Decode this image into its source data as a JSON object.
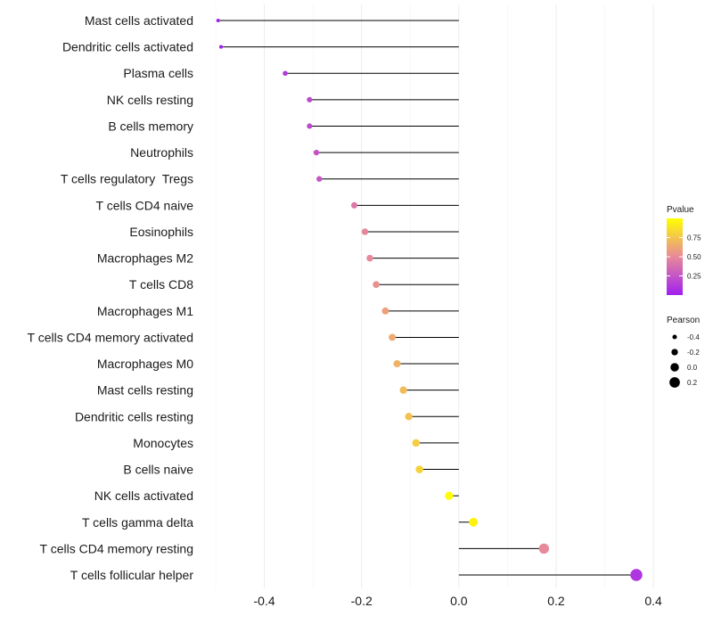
{
  "chart_data": {
    "type": "lollipop",
    "categories": [
      "Mast cells activated",
      "Dendritic cells activated",
      "Plasma cells",
      "NK cells resting",
      "B cells memory",
      "Neutrophils",
      "T cells regulatory  Tregs",
      "T cells CD4 naive",
      "Eosinophils",
      "Macrophages M2",
      "T cells CD8",
      "Macrophages M1",
      "T cells CD4 memory activated",
      "Macrophages M0",
      "Mast cells resting",
      "Dendritic cells resting",
      "Monocytes",
      "B cells naive",
      "NK cells activated",
      "T cells gamma delta",
      "T cells CD4 memory resting",
      "T cells follicular helper"
    ],
    "values": [
      -0.495,
      -0.489,
      -0.357,
      -0.307,
      -0.307,
      -0.293,
      -0.287,
      -0.215,
      -0.193,
      -0.183,
      -0.17,
      -0.151,
      -0.137,
      -0.127,
      -0.114,
      -0.103,
      -0.088,
      -0.081,
      -0.02,
      0.03,
      0.175,
      0.365
    ],
    "pvalues": [
      0.01,
      0.01,
      0.12,
      0.2,
      0.2,
      0.24,
      0.25,
      0.42,
      0.48,
      0.5,
      0.53,
      0.6,
      0.64,
      0.67,
      0.71,
      0.74,
      0.79,
      0.81,
      0.99,
      0.95,
      0.5,
      0.1
    ],
    "x_ticks": [
      -0.4,
      -0.2,
      0.0,
      0.2,
      0.4
    ],
    "x_tick_labels": [
      "-0.4",
      "-0.2",
      "0.0",
      "0.2",
      "0.4"
    ],
    "xlim": [
      -0.5,
      0.42
    ],
    "grid": true,
    "legend_position": "right",
    "color_legend": {
      "title": "Pvalue",
      "ticks": [
        0.75,
        0.5,
        0.25
      ],
      "tick_labels": [
        "0.75",
        "0.50",
        "0.25"
      ],
      "range": [
        0.0,
        1.0
      ],
      "low_color": "#a020f0",
      "mid_color": "#e8899a",
      "high_color": "#ffff00"
    },
    "size_legend": {
      "title": "Pearson",
      "values": [
        -0.4,
        -0.2,
        0.0,
        0.2
      ],
      "labels": [
        "-0.4",
        "-0.2",
        "0.0",
        "0.2"
      ]
    },
    "line_color": "#000000",
    "grid_color": "#ececec"
  }
}
